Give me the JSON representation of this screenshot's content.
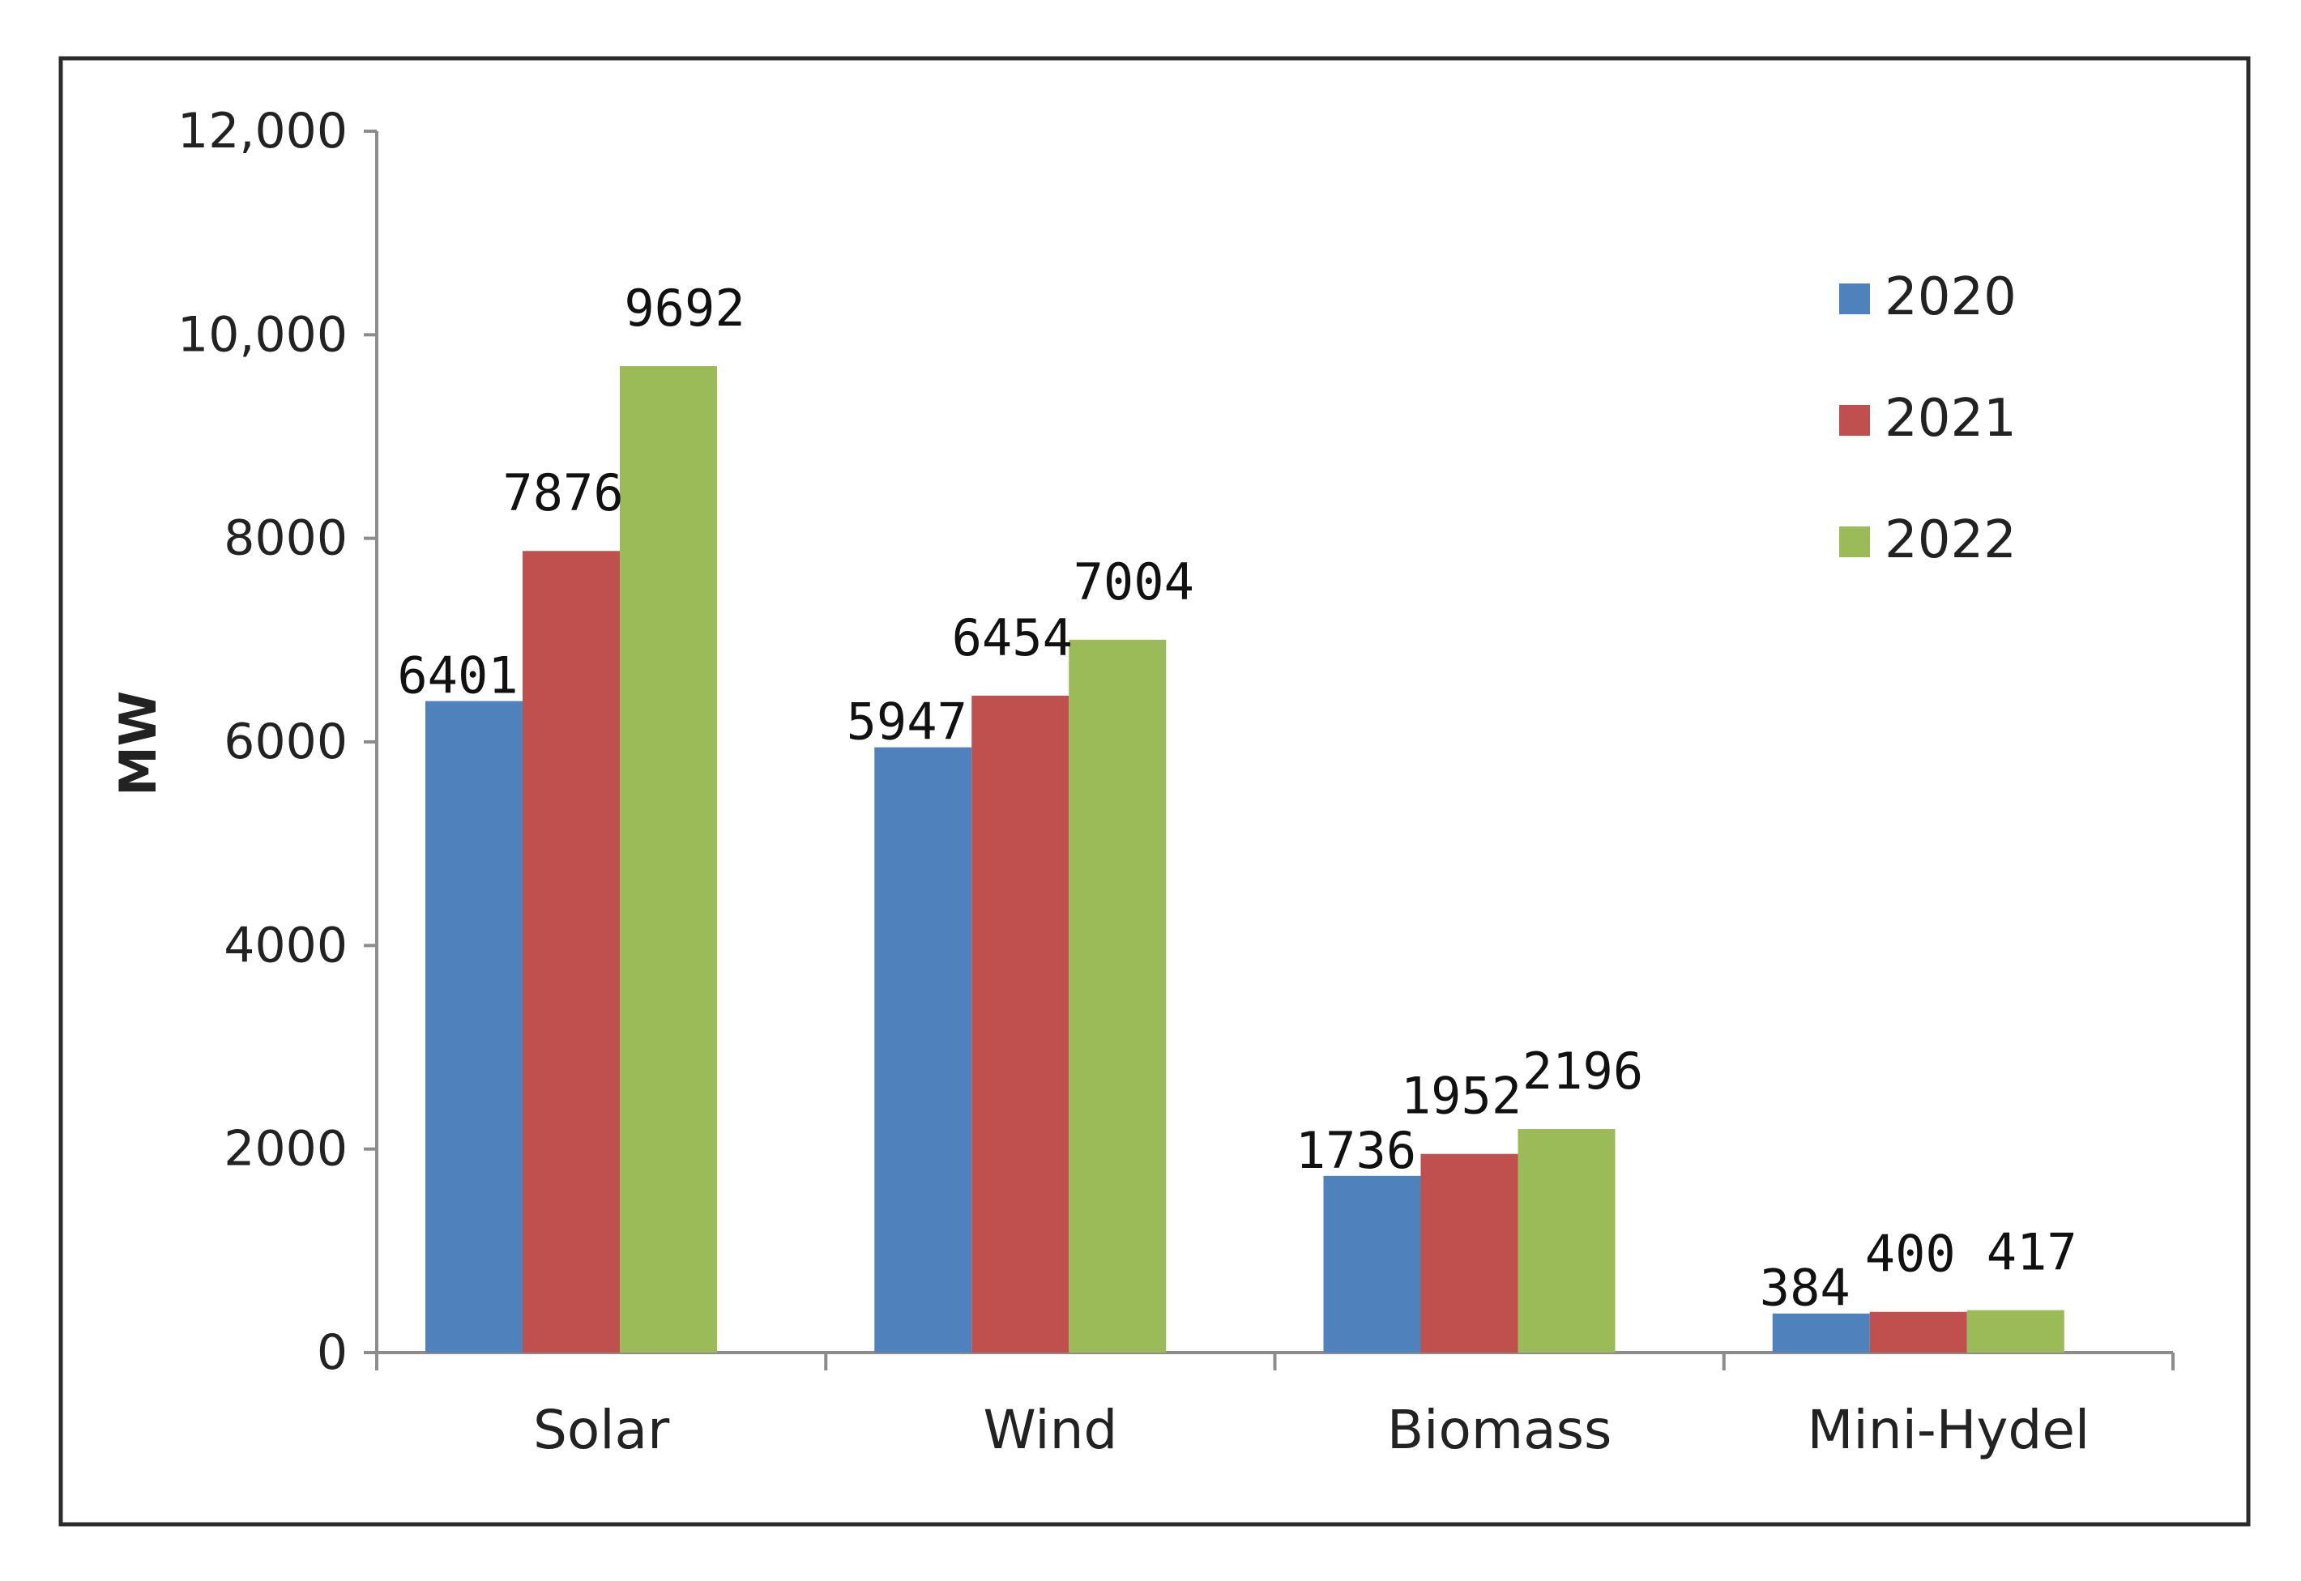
{
  "chart_data": {
    "type": "bar",
    "title": "",
    "xlabel": "",
    "ylabel": "MW",
    "ylim": [
      0,
      12000
    ],
    "yticks": [
      0,
      2000,
      4000,
      6000,
      8000,
      10000,
      12000
    ],
    "ytick_labels": [
      "0",
      "2000",
      "4000",
      "6000",
      "8000",
      "10,000",
      "12,000"
    ],
    "categories": [
      "Solar",
      "Wind",
      "Biomass",
      "Mini-Hydel"
    ],
    "series": [
      {
        "name": "2020",
        "color": "#4f81bd",
        "values": [
          6401,
          5947,
          1736,
          384
        ]
      },
      {
        "name": "2021",
        "color": "#c0504d",
        "values": [
          7876,
          6454,
          1952,
          400
        ]
      },
      {
        "name": "2022",
        "color": "#9bbb59",
        "values": [
          9692,
          7004,
          2196,
          417
        ]
      }
    ],
    "legend_position": "top-right",
    "grid": false
  }
}
